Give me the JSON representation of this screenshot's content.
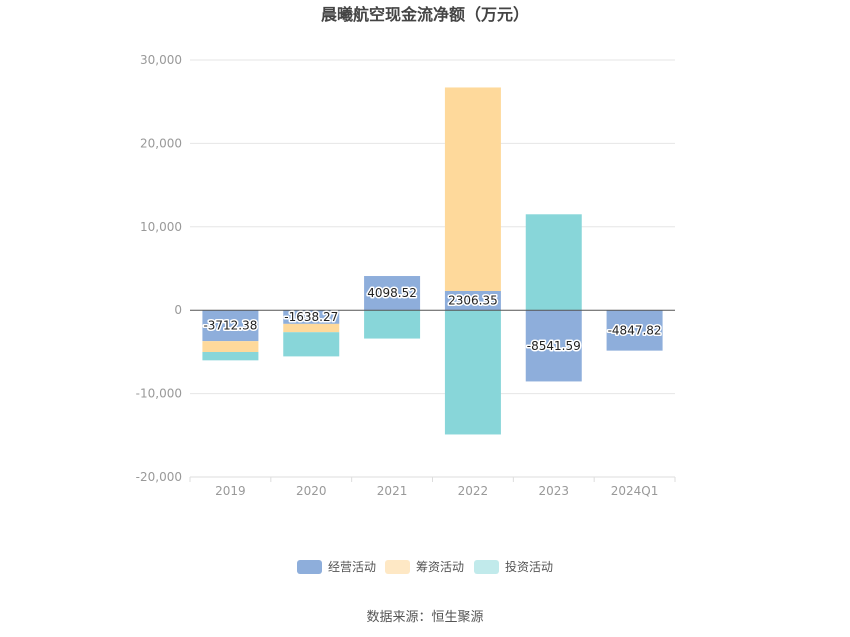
{
  "chart_data": {
    "type": "bar",
    "stacked": true,
    "title": "晨曦航空现金流净额（万元）",
    "categories": [
      "2019",
      "2020",
      "2021",
      "2022",
      "2023",
      "2024Q1"
    ],
    "series": [
      {
        "name": "经营活动",
        "color": "#8eaedb",
        "values": [
          -3712.38,
          -1638.27,
          4098.52,
          2306.35,
          -8541.59,
          -4847.82
        ]
      },
      {
        "name": "筹资活动",
        "color": "#fed99b",
        "values": [
          -1300,
          -1000,
          0,
          24400,
          0,
          0
        ]
      },
      {
        "name": "投资活动",
        "color": "#88d6d9",
        "values": [
          -1000,
          -2900,
          -3400,
          -14900,
          11500,
          0
        ]
      }
    ],
    "labels": [
      "-3712.38",
      "-1638.27",
      "4098.52",
      "2306.35",
      "-8541.59",
      "-4847.82"
    ],
    "ylim": [
      -20000,
      30000
    ],
    "yticks": [
      -20000,
      -10000,
      0,
      10000,
      20000,
      30000
    ],
    "ytick_labels": [
      "-20,000",
      "-10,000",
      "0",
      "10,000",
      "20,000",
      "30,000"
    ],
    "grid": true,
    "legend_position": "bottom",
    "legend_colors": [
      "#8eaedb",
      "#fee8c5",
      "#c1eaeb"
    ]
  },
  "source": "数据来源：恒生聚源"
}
